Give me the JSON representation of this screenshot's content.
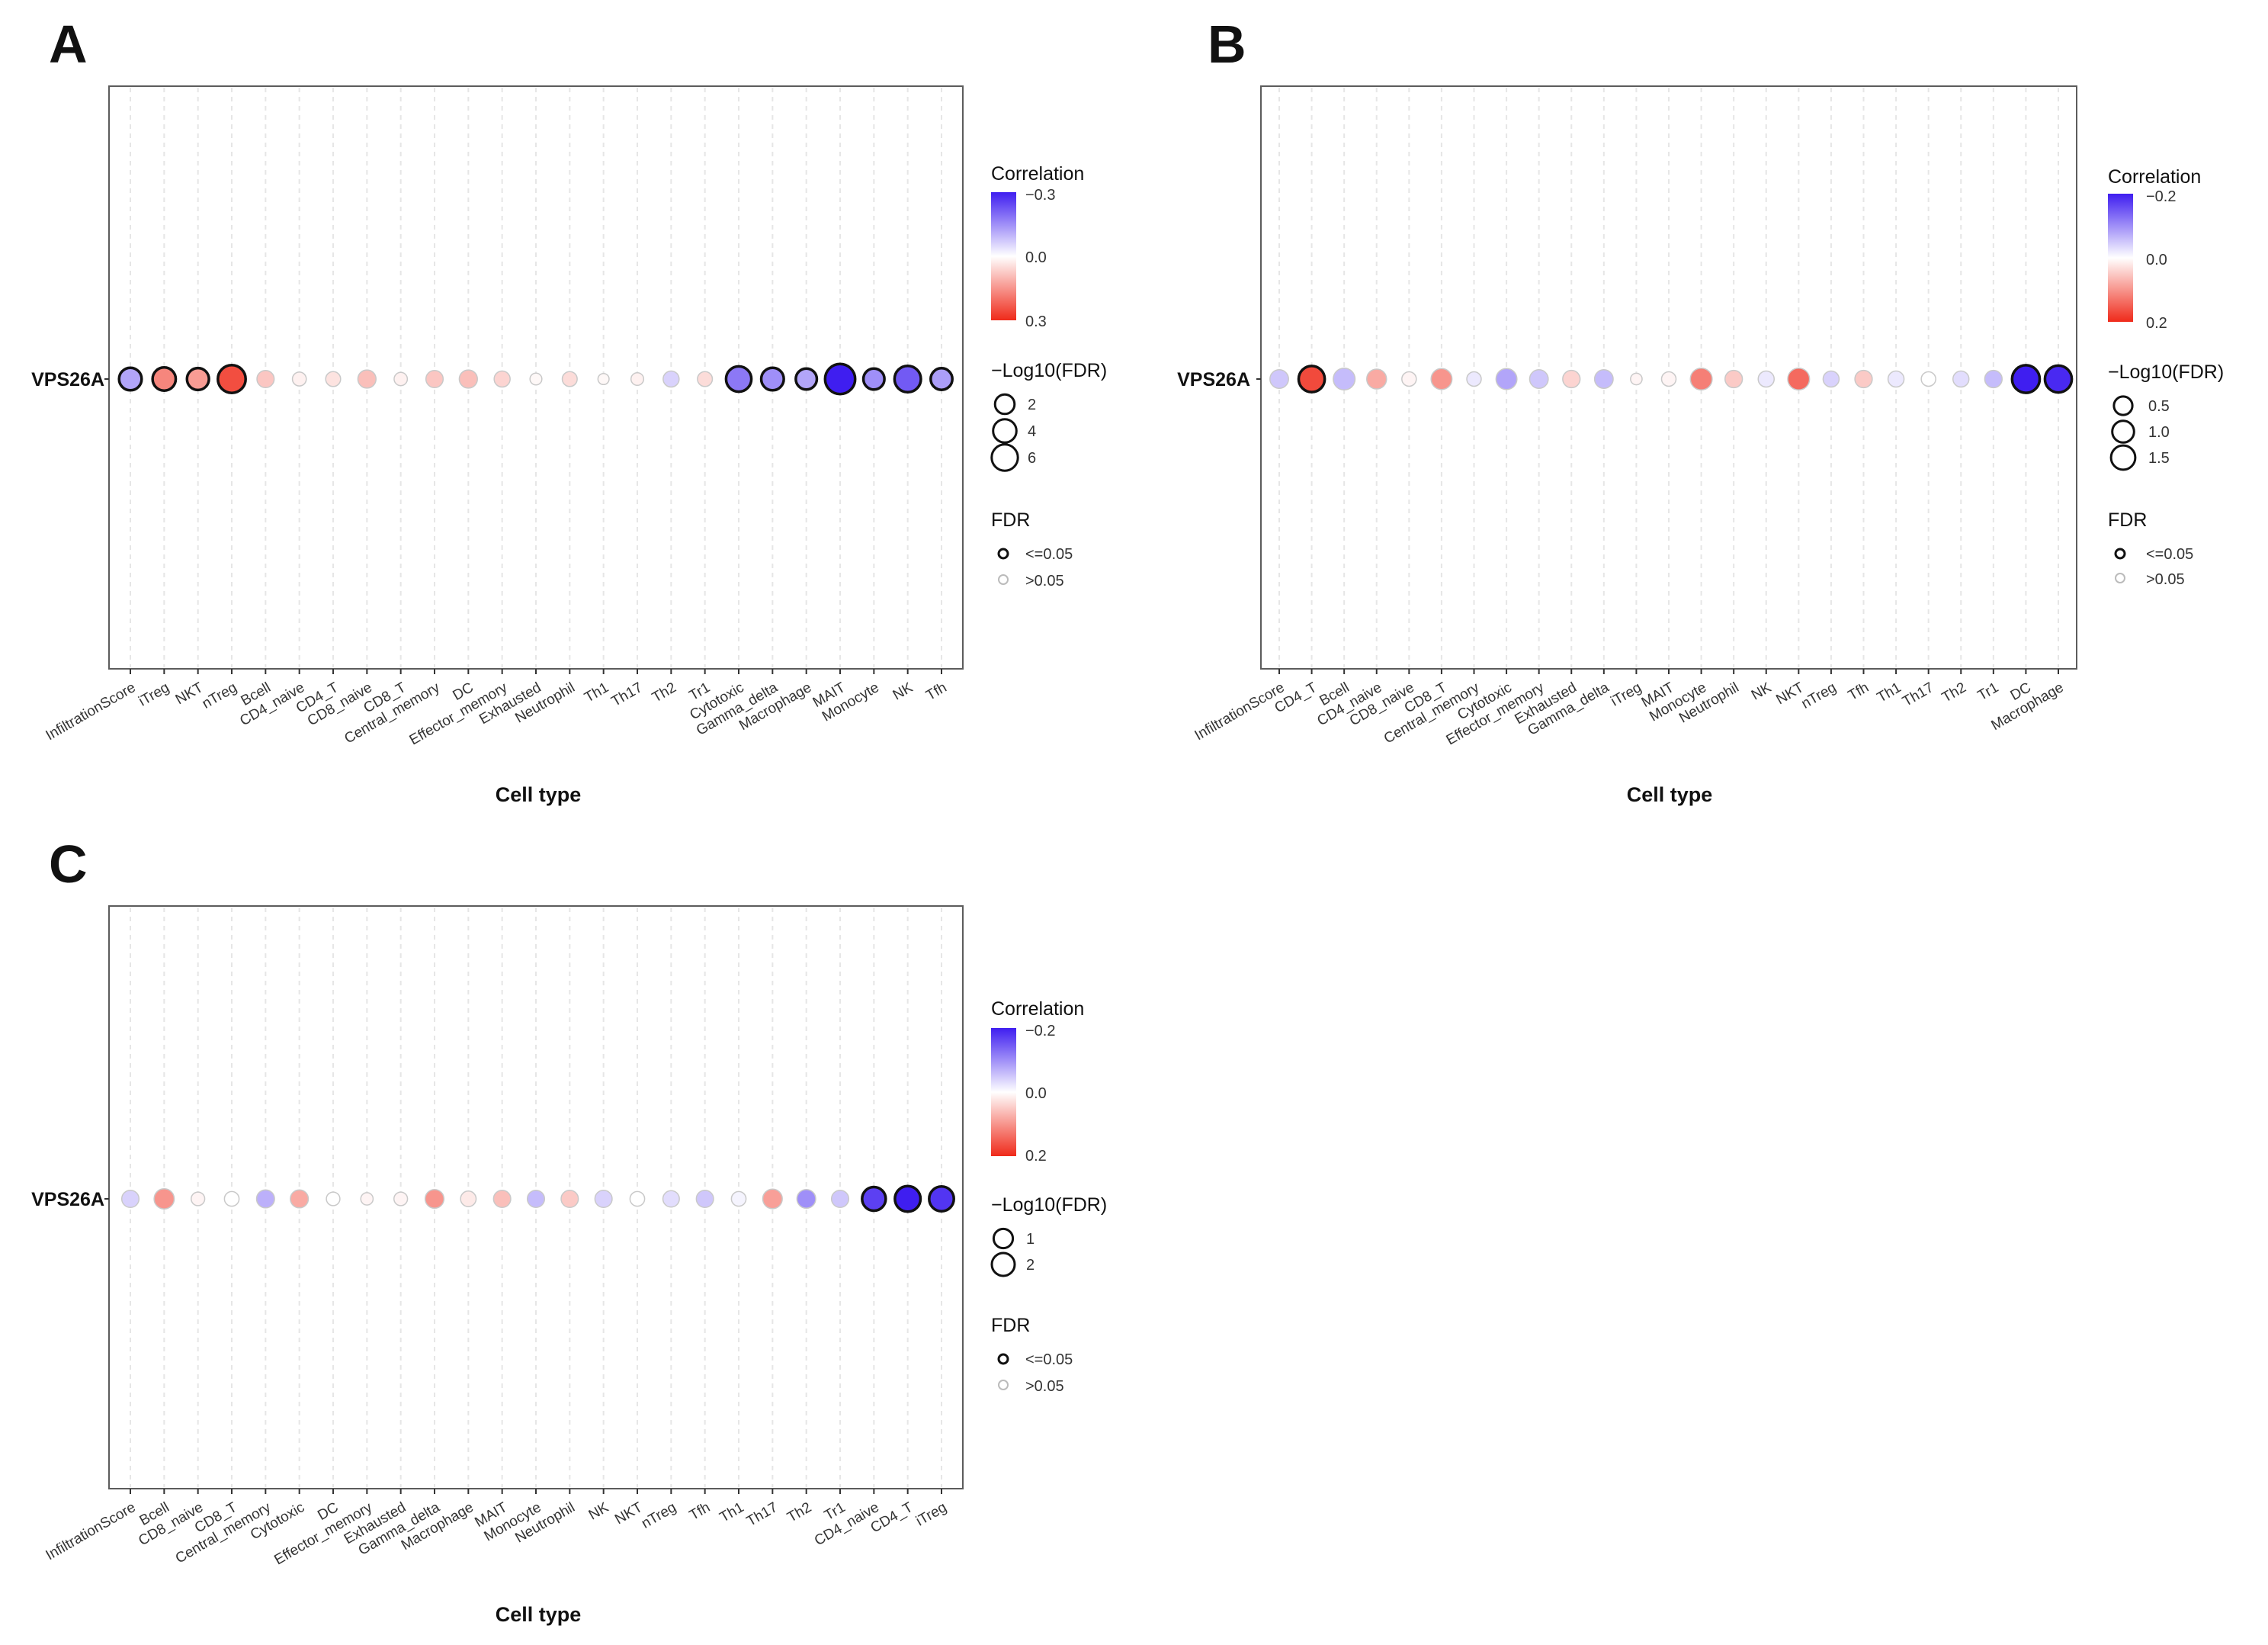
{
  "figure": {
    "background": "#ffffff"
  },
  "colors": {
    "neg": "#3f1ef0",
    "zero": "#ffffff",
    "pos": "#ef2a1a",
    "grid": "#e6e6e6",
    "frame": "#5c5c5c"
  },
  "chart_data": [
    {
      "panel": "A",
      "type": "dot",
      "gene": "VPS26A",
      "xlabel": "Cell type",
      "ylabel": "",
      "legend": {
        "correlation_title": "Correlation",
        "correlation_ticks": [
          "−0.3",
          "0.0",
          "0.3"
        ],
        "size_title": "−Log10(FDR)",
        "size_ticks": [
          "2",
          "4",
          "6"
        ],
        "fdr_title": "FDR",
        "fdr_labels": [
          "<=0.05",
          ">0.05"
        ]
      },
      "corr_range": 0.3,
      "size_range": [
        0,
        7
      ],
      "size_legend_values": [
        2,
        4,
        6
      ],
      "categories": [
        "InfiltrationScore",
        "iTreg",
        "NKT",
        "nTreg",
        "Bcell",
        "CD4_naive",
        "CD4_T",
        "CD8_naive",
        "CD8_T",
        "Central_memory",
        "DC",
        "Effector_memory",
        "Exhausted",
        "Neutrophil",
        "Th1",
        "Th17",
        "Th2",
        "Tr1",
        "Cytotoxic",
        "Gamma_delta",
        "Macrophage",
        "MAIT",
        "Monocyte",
        "NK",
        "Tfh"
      ],
      "correlation": [
        -0.12,
        0.17,
        0.14,
        0.25,
        0.08,
        0.02,
        0.04,
        0.09,
        0.02,
        0.08,
        0.09,
        0.06,
        0.01,
        0.05,
        0.01,
        0.02,
        -0.06,
        0.05,
        -0.18,
        -0.15,
        -0.12,
        -0.3,
        -0.15,
        -0.22,
        -0.13
      ],
      "neglog10fdr": [
        3.0,
        3.2,
        2.8,
        5.0,
        1.5,
        0.8,
        1.0,
        1.7,
        0.7,
        1.5,
        1.7,
        1.2,
        0.5,
        1.0,
        0.4,
        0.6,
        1.2,
        1.0,
        4.0,
        3.0,
        2.5,
        6.0,
        2.5,
        4.4,
        2.7
      ],
      "significant": [
        true,
        true,
        true,
        true,
        false,
        false,
        false,
        false,
        false,
        false,
        false,
        false,
        false,
        false,
        false,
        false,
        false,
        false,
        true,
        true,
        true,
        true,
        true,
        true,
        true
      ]
    },
    {
      "panel": "B",
      "type": "dot",
      "gene": "VPS26A",
      "xlabel": "Cell type",
      "ylabel": "",
      "legend": {
        "correlation_title": "Correlation",
        "correlation_ticks": [
          "−0.2",
          "0.0",
          "0.2"
        ],
        "size_title": "−Log10(FDR)",
        "size_ticks": [
          "0.5",
          "1.0",
          "1.5"
        ],
        "fdr_title": "FDR",
        "fdr_labels": [
          "<=0.05",
          ">0.05"
        ]
      },
      "corr_range": 0.2,
      "size_range": [
        0,
        1.8
      ],
      "size_legend_values": [
        0.5,
        1.0,
        1.5
      ],
      "categories": [
        "InfiltrationScore",
        "CD4_T",
        "Bcell",
        "CD4_naive",
        "CD8_naive",
        "CD8_T",
        "Central_memory",
        "Cytotoxic",
        "Effector_memory",
        "Exhausted",
        "Gamma_delta",
        "iTreg",
        "MAIT",
        "Monocyte",
        "Neutrophil",
        "NK",
        "NKT",
        "nTreg",
        "Tfh",
        "Th1",
        "Th17",
        "Th2",
        "Tr1",
        "DC",
        "Macrophage"
      ],
      "correlation": [
        -0.05,
        0.17,
        -0.06,
        0.08,
        0.01,
        0.1,
        -0.02,
        -0.08,
        -0.05,
        0.04,
        -0.06,
        0.01,
        0.01,
        0.12,
        0.05,
        -0.02,
        0.14,
        -0.04,
        0.05,
        -0.02,
        0.0,
        -0.03,
        -0.06,
        -0.2,
        -0.19
      ],
      "neglog10fdr": [
        0.6,
        1.4,
        0.9,
        0.7,
        0.3,
        0.8,
        0.3,
        0.8,
        0.6,
        0.5,
        0.6,
        0.15,
        0.3,
        0.9,
        0.5,
        0.4,
        0.9,
        0.4,
        0.5,
        0.4,
        0.3,
        0.4,
        0.5,
        1.6,
        1.5
      ],
      "significant": [
        false,
        true,
        false,
        false,
        false,
        false,
        false,
        false,
        false,
        false,
        false,
        false,
        false,
        false,
        false,
        false,
        false,
        false,
        false,
        false,
        false,
        false,
        false,
        true,
        true
      ]
    },
    {
      "panel": "C",
      "type": "dot",
      "gene": "VPS26A",
      "xlabel": "Cell type",
      "ylabel": "",
      "legend": {
        "correlation_title": "Correlation",
        "correlation_ticks": [
          "−0.2",
          "0.0",
          "0.2"
        ],
        "size_title": "−Log10(FDR)",
        "size_ticks": [
          "1",
          "2"
        ],
        "fdr_title": "FDR",
        "fdr_labels": [
          "<=0.05",
          ">0.05"
        ]
      },
      "corr_range": 0.2,
      "size_range": [
        0,
        2.6
      ],
      "size_legend_values": [
        1,
        2
      ],
      "categories": [
        "InfiltrationScore",
        "Bcell",
        "CD8_naive",
        "CD8_T",
        "Central_memory",
        "Cytotoxic",
        "DC",
        "Effector_memory",
        "Exhausted",
        "Gamma_delta",
        "Macrophage",
        "MAIT",
        "Monocyte",
        "Neutrophil",
        "NK",
        "NKT",
        "nTreg",
        "Tfh",
        "Th1",
        "Th17",
        "Th2",
        "Tr1",
        "CD4_naive",
        "CD4_T",
        "iTreg"
      ],
      "correlation": [
        -0.04,
        0.1,
        0.01,
        0.0,
        -0.07,
        0.08,
        0.0,
        0.01,
        0.01,
        0.1,
        0.02,
        0.06,
        -0.06,
        0.05,
        -0.04,
        0.0,
        -0.03,
        -0.05,
        -0.01,
        0.09,
        -0.1,
        -0.05,
        -0.17,
        -0.21,
        -0.18
      ],
      "neglog10fdr": [
        0.8,
        1.2,
        0.4,
        0.5,
        0.9,
        0.9,
        0.4,
        0.3,
        0.4,
        1.0,
        0.6,
        0.8,
        0.8,
        0.8,
        0.8,
        0.5,
        0.7,
        0.8,
        0.5,
        1.1,
        1.0,
        0.8,
        1.8,
        2.2,
        2.0
      ],
      "significant": [
        false,
        false,
        false,
        false,
        false,
        false,
        false,
        false,
        false,
        false,
        false,
        false,
        false,
        false,
        false,
        false,
        false,
        false,
        false,
        false,
        false,
        false,
        true,
        true,
        true
      ]
    }
  ]
}
